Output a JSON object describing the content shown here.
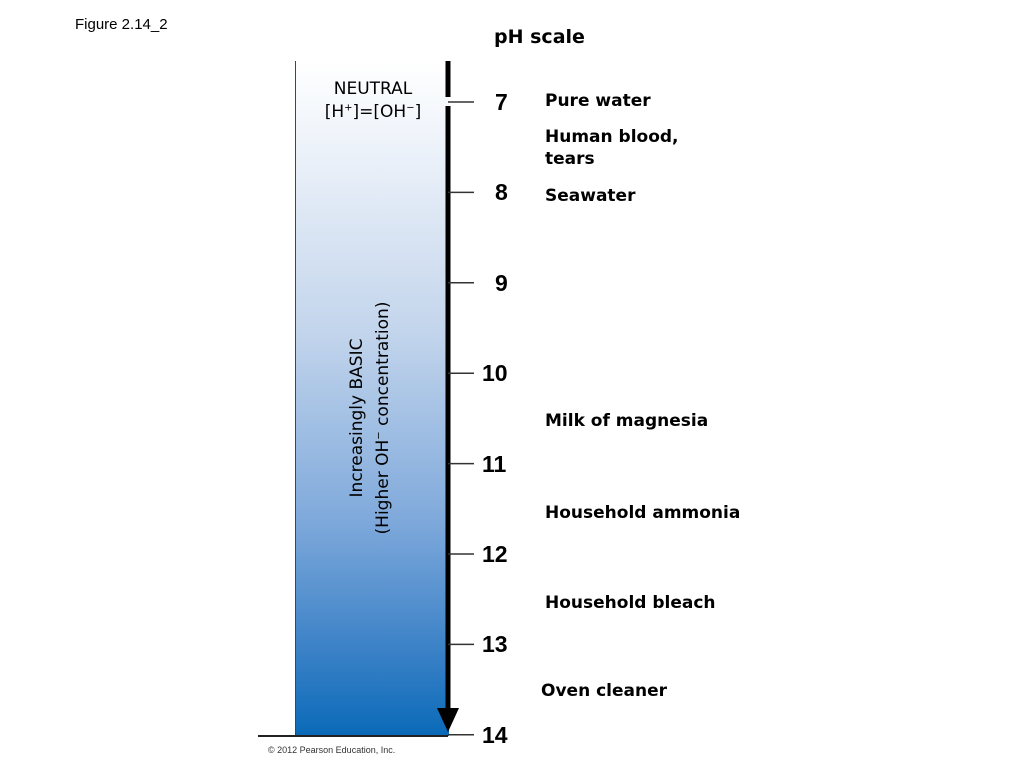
{
  "figure_label": "Figure 2.14_2",
  "title": "pH scale",
  "neutral": {
    "line1": "NEUTRAL",
    "h_open": "[H",
    "h_charge": "+",
    "mid": "]=[OH",
    "oh_charge": "−",
    "close": "]"
  },
  "gradient_label": {
    "line1": "Increasingly BASIC",
    "line2_start": "(Higher OH",
    "line2_charge": "−",
    "line2_end": " concentration)"
  },
  "scale": {
    "ticks": [
      "7",
      "8",
      "9",
      "10",
      "11",
      "12",
      "13",
      "14"
    ]
  },
  "substances": [
    {
      "name": "Pure water"
    },
    {
      "name": "Human blood,"
    },
    {
      "name": "tears"
    },
    {
      "name": "Seawater"
    },
    {
      "name": "Milk of magnesia"
    },
    {
      "name": "Household ammonia"
    },
    {
      "name": "Household bleach"
    },
    {
      "name": "Oven cleaner"
    }
  ],
  "colors": {
    "gradient_top": "#ffffff",
    "gradient_bottom": "#0a6ab8",
    "arrow": "#000000"
  },
  "copyright": "© 2012 Pearson Education, Inc."
}
